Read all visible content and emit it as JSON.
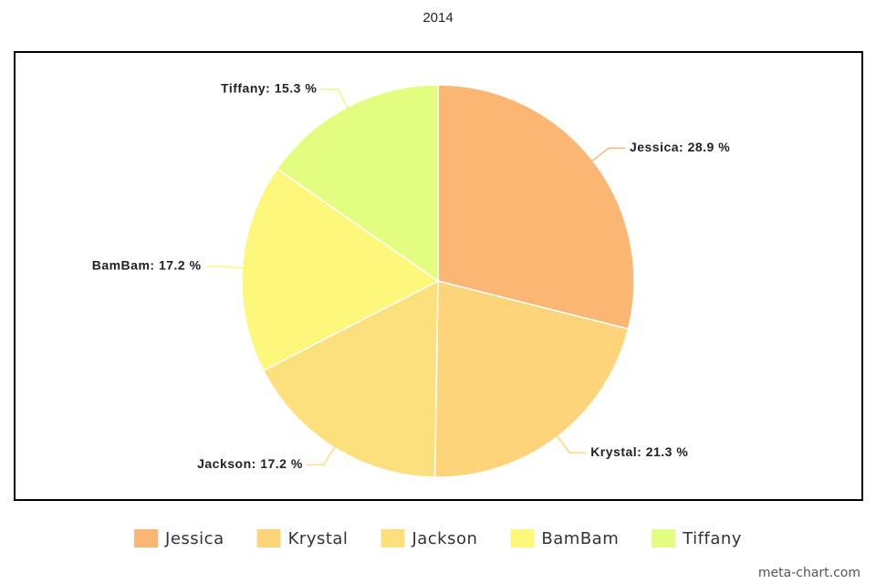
{
  "chart_data": {
    "type": "pie",
    "title": "2014",
    "categories": [
      "Jessica",
      "Krystal",
      "Jackson",
      "BamBam",
      "Tiffany"
    ],
    "values": [
      28.9,
      21.3,
      17.2,
      17.2,
      15.3
    ],
    "value_labels": [
      "Jessica: 28.9 %",
      "Krystal: 21.3 %",
      "Jackson: 17.2 %",
      "BamBam: 17.2 %",
      "Tiffany: 15.3 %"
    ],
    "colors": [
      "#fbb673",
      "#fdd47a",
      "#fde07e",
      "#fdf77b",
      "#e3fd80"
    ],
    "legend": "bottom",
    "credit": "meta-chart.com"
  }
}
